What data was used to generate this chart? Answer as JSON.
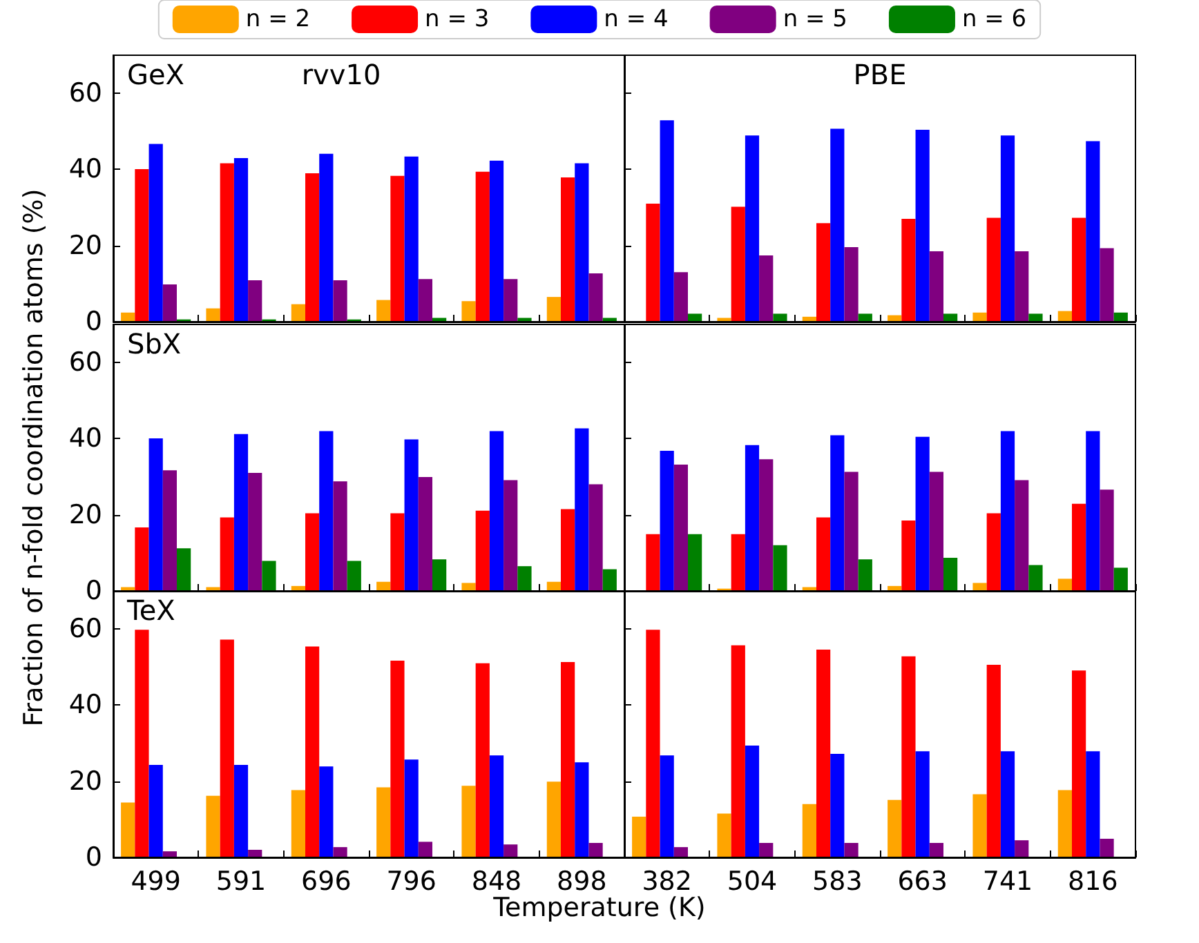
{
  "chart_data": [
    {
      "type": "bar",
      "annotations": [
        "GeX",
        "rvv10"
      ],
      "categories": [
        "499",
        "591",
        "696",
        "796",
        "848",
        "898"
      ],
      "ylim": [
        0,
        70
      ],
      "yticks": [
        0,
        20,
        40,
        60
      ],
      "tick_labels": "y",
      "legend": "top",
      "grid": false,
      "series": [
        {
          "name": "n = 2",
          "color": "#ffa500",
          "values": [
            2.4,
            3.5,
            4.6,
            5.7,
            5.4,
            6.5
          ]
        },
        {
          "name": "n = 3",
          "color": "#ff0000",
          "values": [
            40.1,
            41.6,
            39.0,
            38.3,
            39.4,
            37.9
          ]
        },
        {
          "name": "n = 4",
          "color": "#0000ff",
          "values": [
            46.7,
            43.0,
            44.1,
            43.4,
            42.3,
            41.6
          ]
        },
        {
          "name": "n = 5",
          "color": "#800080",
          "values": [
            9.8,
            10.9,
            10.9,
            11.2,
            11.2,
            12.7
          ]
        },
        {
          "name": "n = 6",
          "color": "#008000",
          "values": [
            0.6,
            0.6,
            0.6,
            1.0,
            1.0,
            1.0
          ]
        }
      ]
    },
    {
      "type": "bar",
      "annotations": [
        "PBE"
      ],
      "categories": [
        "382",
        "504",
        "583",
        "663",
        "741",
        "816"
      ],
      "ylim": [
        0,
        70
      ],
      "yticks": [
        0,
        20,
        40,
        60
      ],
      "tick_labels": false,
      "grid": false,
      "series": [
        {
          "color": "#ffa500",
          "values": [
            null,
            1.0,
            1.3,
            1.7,
            2.4,
            2.8
          ]
        },
        {
          "color": "#ff0000",
          "values": [
            31.0,
            30.2,
            25.9,
            27.0,
            27.3,
            27.3
          ]
        },
        {
          "color": "#0000ff",
          "values": [
            52.9,
            48.9,
            50.7,
            50.4,
            48.9,
            47.4
          ]
        },
        {
          "color": "#800080",
          "values": [
            13.0,
            17.4,
            19.6,
            18.5,
            18.5,
            19.3
          ]
        },
        {
          "color": "#008000",
          "values": [
            2.1,
            2.1,
            2.1,
            2.1,
            2.1,
            2.4
          ]
        }
      ]
    },
    {
      "type": "bar",
      "annotations": [
        "SbX"
      ],
      "ylabel": "Fraction of n-fold coordination atoms (%)",
      "categories": [
        "499",
        "591",
        "696",
        "796",
        "848",
        "898"
      ],
      "ylim": [
        0,
        70
      ],
      "yticks": [
        0,
        20,
        40,
        60
      ],
      "tick_labels": "y",
      "grid": false,
      "series": [
        {
          "color": "#ffa500",
          "values": [
            1.0,
            1.0,
            1.3,
            2.4,
            2.1,
            2.4
          ]
        },
        {
          "color": "#ff0000",
          "values": [
            16.7,
            19.3,
            20.4,
            20.4,
            21.1,
            21.5
          ]
        },
        {
          "color": "#0000ff",
          "values": [
            40.1,
            41.2,
            42.0,
            39.8,
            42.0,
            42.7
          ]
        },
        {
          "color": "#800080",
          "values": [
            31.7,
            31.0,
            28.8,
            29.9,
            29.1,
            28.0
          ]
        },
        {
          "color": "#008000",
          "values": [
            11.2,
            7.9,
            7.9,
            8.3,
            6.5,
            5.7
          ]
        }
      ]
    },
    {
      "type": "bar",
      "categories": [
        "382",
        "504",
        "583",
        "663",
        "741",
        "816"
      ],
      "ylim": [
        0,
        70
      ],
      "yticks": [
        0,
        20,
        40,
        60
      ],
      "tick_labels": false,
      "grid": false,
      "series": [
        {
          "color": "#ffa500",
          "values": [
            null,
            0.6,
            1.0,
            1.3,
            2.1,
            3.2
          ]
        },
        {
          "color": "#ff0000",
          "values": [
            14.9,
            14.9,
            19.3,
            18.5,
            20.4,
            22.9
          ]
        },
        {
          "color": "#0000ff",
          "values": [
            36.8,
            38.3,
            40.9,
            40.5,
            42.0,
            42.0
          ]
        },
        {
          "color": "#800080",
          "values": [
            33.2,
            34.6,
            31.3,
            31.3,
            29.1,
            26.6
          ]
        },
        {
          "color": "#008000",
          "values": [
            14.9,
            12.0,
            8.3,
            8.7,
            6.8,
            6.1
          ]
        }
      ]
    },
    {
      "type": "bar",
      "annotations": [
        "TeX"
      ],
      "xlabel": "Temperature (K)",
      "categories": [
        "499",
        "591",
        "696",
        "796",
        "848",
        "898"
      ],
      "ylim": [
        0,
        70
      ],
      "yticks": [
        0,
        20,
        40,
        60
      ],
      "grid": false,
      "series": [
        {
          "color": "#ffa500",
          "values": [
            14.4,
            16.2,
            17.7,
            18.4,
            18.8,
            19.9
          ]
        },
        {
          "color": "#ff0000",
          "values": [
            59.8,
            57.2,
            55.4,
            51.7,
            51.0,
            51.3
          ]
        },
        {
          "color": "#0000ff",
          "values": [
            24.3,
            24.3,
            23.9,
            25.7,
            26.8,
            25.0
          ]
        },
        {
          "color": "#800080",
          "values": [
            1.6,
            2.0,
            2.7,
            4.1,
            3.4,
            3.8
          ]
        },
        {
          "color": "#008000",
          "values": [
            0,
            0,
            0,
            0,
            0,
            0
          ]
        }
      ]
    },
    {
      "type": "bar",
      "categories": [
        "382",
        "504",
        "583",
        "663",
        "741",
        "816"
      ],
      "ylim": [
        0,
        70
      ],
      "yticks": [
        0,
        20,
        40,
        60
      ],
      "tick_labels": "x",
      "grid": false,
      "series": [
        {
          "color": "#ffa500",
          "values": [
            10.7,
            11.5,
            14.0,
            15.1,
            16.6,
            17.7
          ]
        },
        {
          "color": "#ff0000",
          "values": [
            59.8,
            55.7,
            54.6,
            52.8,
            50.6,
            49.1
          ]
        },
        {
          "color": "#0000ff",
          "values": [
            26.8,
            29.4,
            27.2,
            27.9,
            27.9,
            27.9
          ]
        },
        {
          "color": "#800080",
          "values": [
            2.7,
            3.8,
            3.8,
            3.8,
            4.5,
            4.9
          ]
        },
        {
          "color": "#008000",
          "values": [
            0,
            0,
            0,
            0,
            0,
            0
          ]
        }
      ]
    }
  ]
}
